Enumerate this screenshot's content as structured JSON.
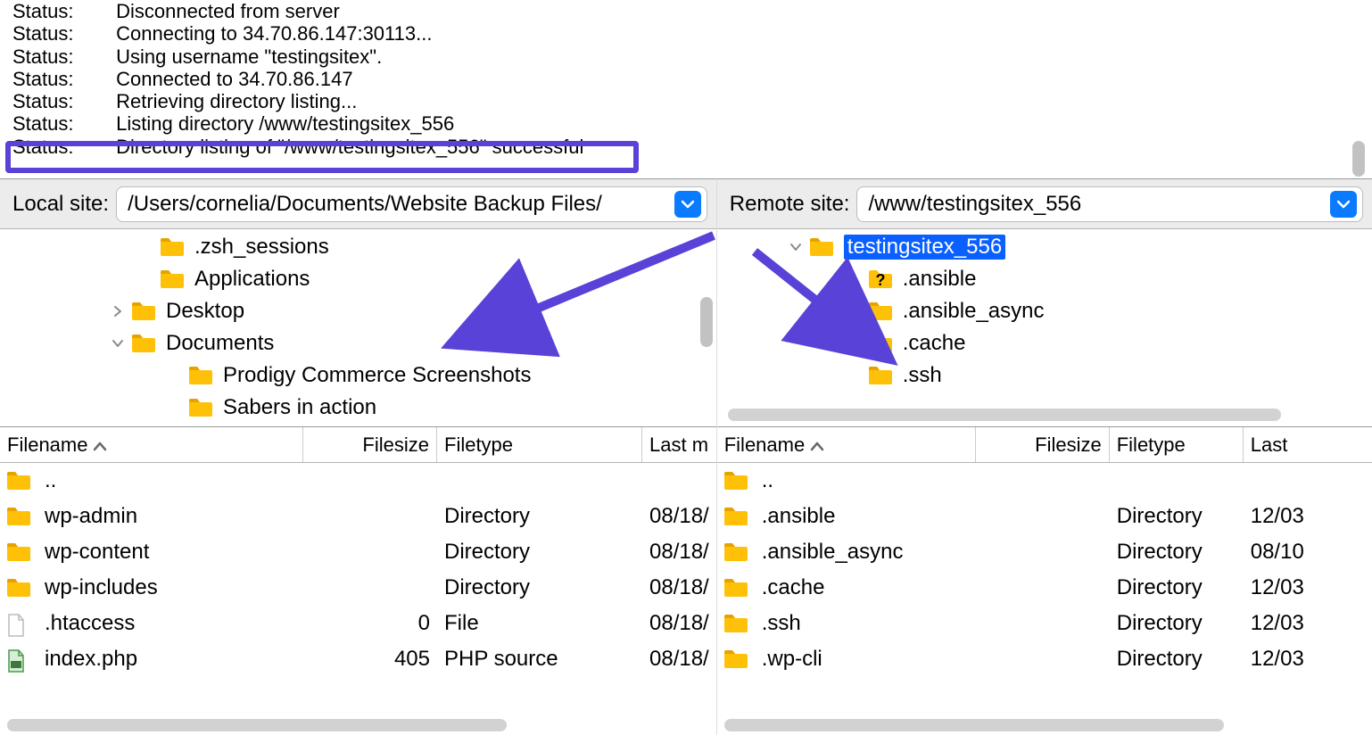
{
  "colors": {
    "accent": "#5842d7",
    "dropdown": "#0a7aff",
    "selection": "#0a5fff",
    "folder": "#ffc107",
    "folder_tab": "#e8a200",
    "scroll": "#c2c2c2",
    "hscroll": "#d2d2d2"
  },
  "log": [
    {
      "label": "Status:",
      "msg": "Disconnected from server"
    },
    {
      "label": "Status:",
      "msg": "Connecting to 34.70.86.147:30113..."
    },
    {
      "label": "Status:",
      "msg": "Using username \"testingsitex\"."
    },
    {
      "label": "Status:",
      "msg": "Connected to 34.70.86.147"
    },
    {
      "label": "Status:",
      "msg": "Retrieving directory listing..."
    },
    {
      "label": "Status:",
      "msg": "Listing directory /www/testingsitex_556"
    },
    {
      "label": "Status:",
      "msg": "Directory listing of \"/www/testingsitex_556\" successful"
    }
  ],
  "local": {
    "label": "Local site:",
    "path": "/Users/cornelia/Documents/Website Backup Files/",
    "tree": [
      {
        "indent": 150,
        "disclosure": "",
        "icon": "folder",
        "label": ".zsh_sessions"
      },
      {
        "indent": 150,
        "disclosure": "",
        "icon": "folder",
        "label": "Applications"
      },
      {
        "indent": 118,
        "disclosure": "right",
        "icon": "folder",
        "label": "Desktop"
      },
      {
        "indent": 118,
        "disclosure": "down",
        "icon": "folder",
        "label": "Documents"
      },
      {
        "indent": 182,
        "disclosure": "",
        "icon": "folder",
        "label": "Prodigy Commerce Screenshots"
      },
      {
        "indent": 182,
        "disclosure": "",
        "icon": "folder",
        "label": "Sabers in action"
      }
    ],
    "columns": {
      "filename": "Filename",
      "filesize": "Filesize",
      "filetype": "Filetype",
      "lastmod": "Last m"
    },
    "col_widths": {
      "filename": 340,
      "filesize": 150,
      "filetype": 230,
      "lastmod": 90
    },
    "files": [
      {
        "icon": "folder",
        "name": "..",
        "size": "",
        "type": "",
        "mod": ""
      },
      {
        "icon": "folder",
        "name": "wp-admin",
        "size": "",
        "type": "Directory",
        "mod": "08/18/"
      },
      {
        "icon": "folder",
        "name": "wp-content",
        "size": "",
        "type": "Directory",
        "mod": "08/18/"
      },
      {
        "icon": "folder",
        "name": "wp-includes",
        "size": "",
        "type": "Directory",
        "mod": "08/18/"
      },
      {
        "icon": "file",
        "name": ".htaccess",
        "size": "0",
        "type": "File",
        "mod": "08/18/"
      },
      {
        "icon": "php",
        "name": "index.php",
        "size": "405",
        "type": "PHP source",
        "mod": "08/18/"
      }
    ]
  },
  "remote": {
    "label": "Remote site:",
    "path": "/www/testingsitex_556",
    "tree": [
      {
        "indent": 74,
        "disclosure": "down",
        "icon": "folder",
        "label": "testingsitex_556",
        "selected": true
      },
      {
        "indent": 140,
        "disclosure": "",
        "icon": "unknown",
        "label": ".ansible"
      },
      {
        "indent": 140,
        "disclosure": "",
        "icon": "folder",
        "label": ".ansible_async"
      },
      {
        "indent": 140,
        "disclosure": "",
        "icon": "folder",
        "label": ".cache"
      },
      {
        "indent": 140,
        "disclosure": "",
        "icon": "folder",
        "label": ".ssh"
      }
    ],
    "columns": {
      "filename": "Filename",
      "filesize": "Filesize",
      "filetype": "Filetype",
      "lastmod": "Last"
    },
    "col_widths": {
      "filename": 290,
      "filesize": 150,
      "filetype": 150,
      "lastmod": 90
    },
    "files": [
      {
        "icon": "folder",
        "name": "..",
        "size": "",
        "type": "",
        "mod": ""
      },
      {
        "icon": "folder",
        "name": ".ansible",
        "size": "",
        "type": "Directory",
        "mod": "12/03"
      },
      {
        "icon": "folder",
        "name": ".ansible_async",
        "size": "",
        "type": "Directory",
        "mod": "08/10"
      },
      {
        "icon": "folder",
        "name": ".cache",
        "size": "",
        "type": "Directory",
        "mod": "12/03"
      },
      {
        "icon": "folder",
        "name": ".ssh",
        "size": "",
        "type": "Directory",
        "mod": "12/03"
      },
      {
        "icon": "folder",
        "name": ".wp-cli",
        "size": "",
        "type": "Directory",
        "mod": "12/03"
      }
    ]
  }
}
